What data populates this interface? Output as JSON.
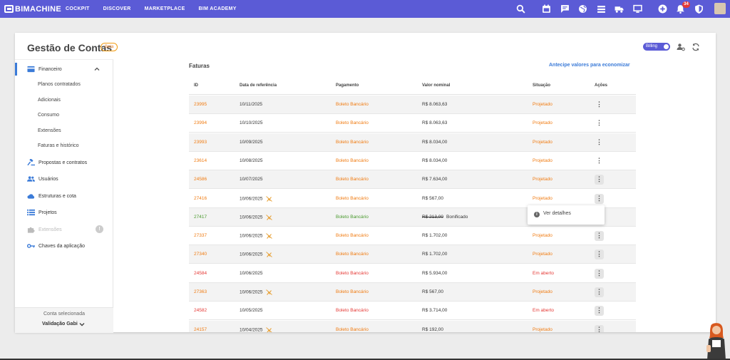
{
  "topbar": {
    "brand": "BIMACHINE",
    "nav": [
      "COCKPIT",
      "DISCOVER",
      "MARKETPLACE",
      "BIM ACADEMY"
    ],
    "notification_count": "34",
    "color": "#5b5bd6"
  },
  "header": {
    "title": "Gestão de Contas",
    "badge": "Beta",
    "billing_toggle": "Billing"
  },
  "sidebar": {
    "financeiro": "Financeiro",
    "sub_items": [
      "Planos contratados",
      "Adicionais",
      "Consumo",
      "Extensões",
      "Faturas e histórico"
    ],
    "items": [
      {
        "label": "Propostas e contratos",
        "icon": "gavel-icon"
      },
      {
        "label": "Usuários",
        "icon": "users-icon"
      },
      {
        "label": "Estruturas e cota",
        "icon": "cloud-icon"
      },
      {
        "label": "Projetos",
        "icon": "list-icon"
      },
      {
        "label": "Extensões",
        "icon": "puzzle-icon"
      },
      {
        "label": "Chaves da aplicação",
        "icon": "key-icon"
      }
    ],
    "footer_label": "Conta selecionada",
    "account_name": "Validação Gabi"
  },
  "faturas": {
    "title": "Faturas",
    "cta": "Antecipe valores para economizar",
    "columns": [
      "ID",
      "Data de referência",
      "Pagamento",
      "Valor nominal",
      "Situação",
      "Ações"
    ],
    "rows": [
      {
        "id": "23995",
        "date": "10/11/2025",
        "pay": "Boleto Bancário",
        "value": "R$ 8.063,63",
        "status": "Projetado",
        "tone": "orange",
        "plug": false
      },
      {
        "id": "23994",
        "date": "10/10/2025",
        "pay": "Boleto Bancário",
        "value": "R$ 8.063,63",
        "status": "Projetado",
        "tone": "orange",
        "plug": false
      },
      {
        "id": "23993",
        "date": "10/09/2025",
        "pay": "Boleto Bancário",
        "value": "R$ 8.034,00",
        "status": "Projetado",
        "tone": "orange",
        "plug": false
      },
      {
        "id": "23614",
        "date": "10/08/2025",
        "pay": "Boleto Bancário",
        "value": "R$ 8.034,00",
        "status": "Projetado",
        "tone": "orange",
        "plug": false
      },
      {
        "id": "24586",
        "date": "10/07/2025",
        "pay": "Boleto Bancário",
        "value": "R$ 7.634,00",
        "status": "Projetado",
        "tone": "orange",
        "plug": false
      },
      {
        "id": "27416",
        "date": "10/06/2025",
        "pay": "Boleto Bancário",
        "value": "R$ 567,00",
        "status": "Projetado",
        "tone": "orange",
        "plug": true
      },
      {
        "id": "27417",
        "date": "10/06/2025",
        "pay": "Boleto Bancário",
        "value": "R$ 213,00",
        "extra": "Bonificado",
        "status": "",
        "tone": "green",
        "plug": true
      },
      {
        "id": "27337",
        "date": "10/06/2025",
        "pay": "Boleto Bancário",
        "value": "R$ 1.702,00",
        "status": "Projetado",
        "tone": "orange",
        "plug": true
      },
      {
        "id": "27340",
        "date": "10/06/2025",
        "pay": "Boleto Bancário",
        "value": "R$ 1.702,00",
        "status": "Projetado",
        "tone": "orange",
        "plug": true
      },
      {
        "id": "24584",
        "date": "10/06/2025",
        "pay": "Boleto Bancário",
        "value": "R$ 5.934,00",
        "status": "Em aberto",
        "tone": "red",
        "plug": false
      },
      {
        "id": "27363",
        "date": "10/06/2025",
        "pay": "Boleto Bancário",
        "value": "R$ 567,00",
        "status": "Projetado",
        "tone": "orange",
        "plug": true
      },
      {
        "id": "24582",
        "date": "10/05/2025",
        "pay": "Boleto Bancário",
        "value": "R$ 3.714,00",
        "status": "Em aberto",
        "tone": "red",
        "plug": false
      },
      {
        "id": "24157",
        "date": "10/04/2025",
        "pay": "Boleto Bancário",
        "value": "R$ 192,00",
        "status": "Projetado",
        "tone": "orange",
        "plug": true
      }
    ],
    "menu_item": "Ver detalhes"
  }
}
